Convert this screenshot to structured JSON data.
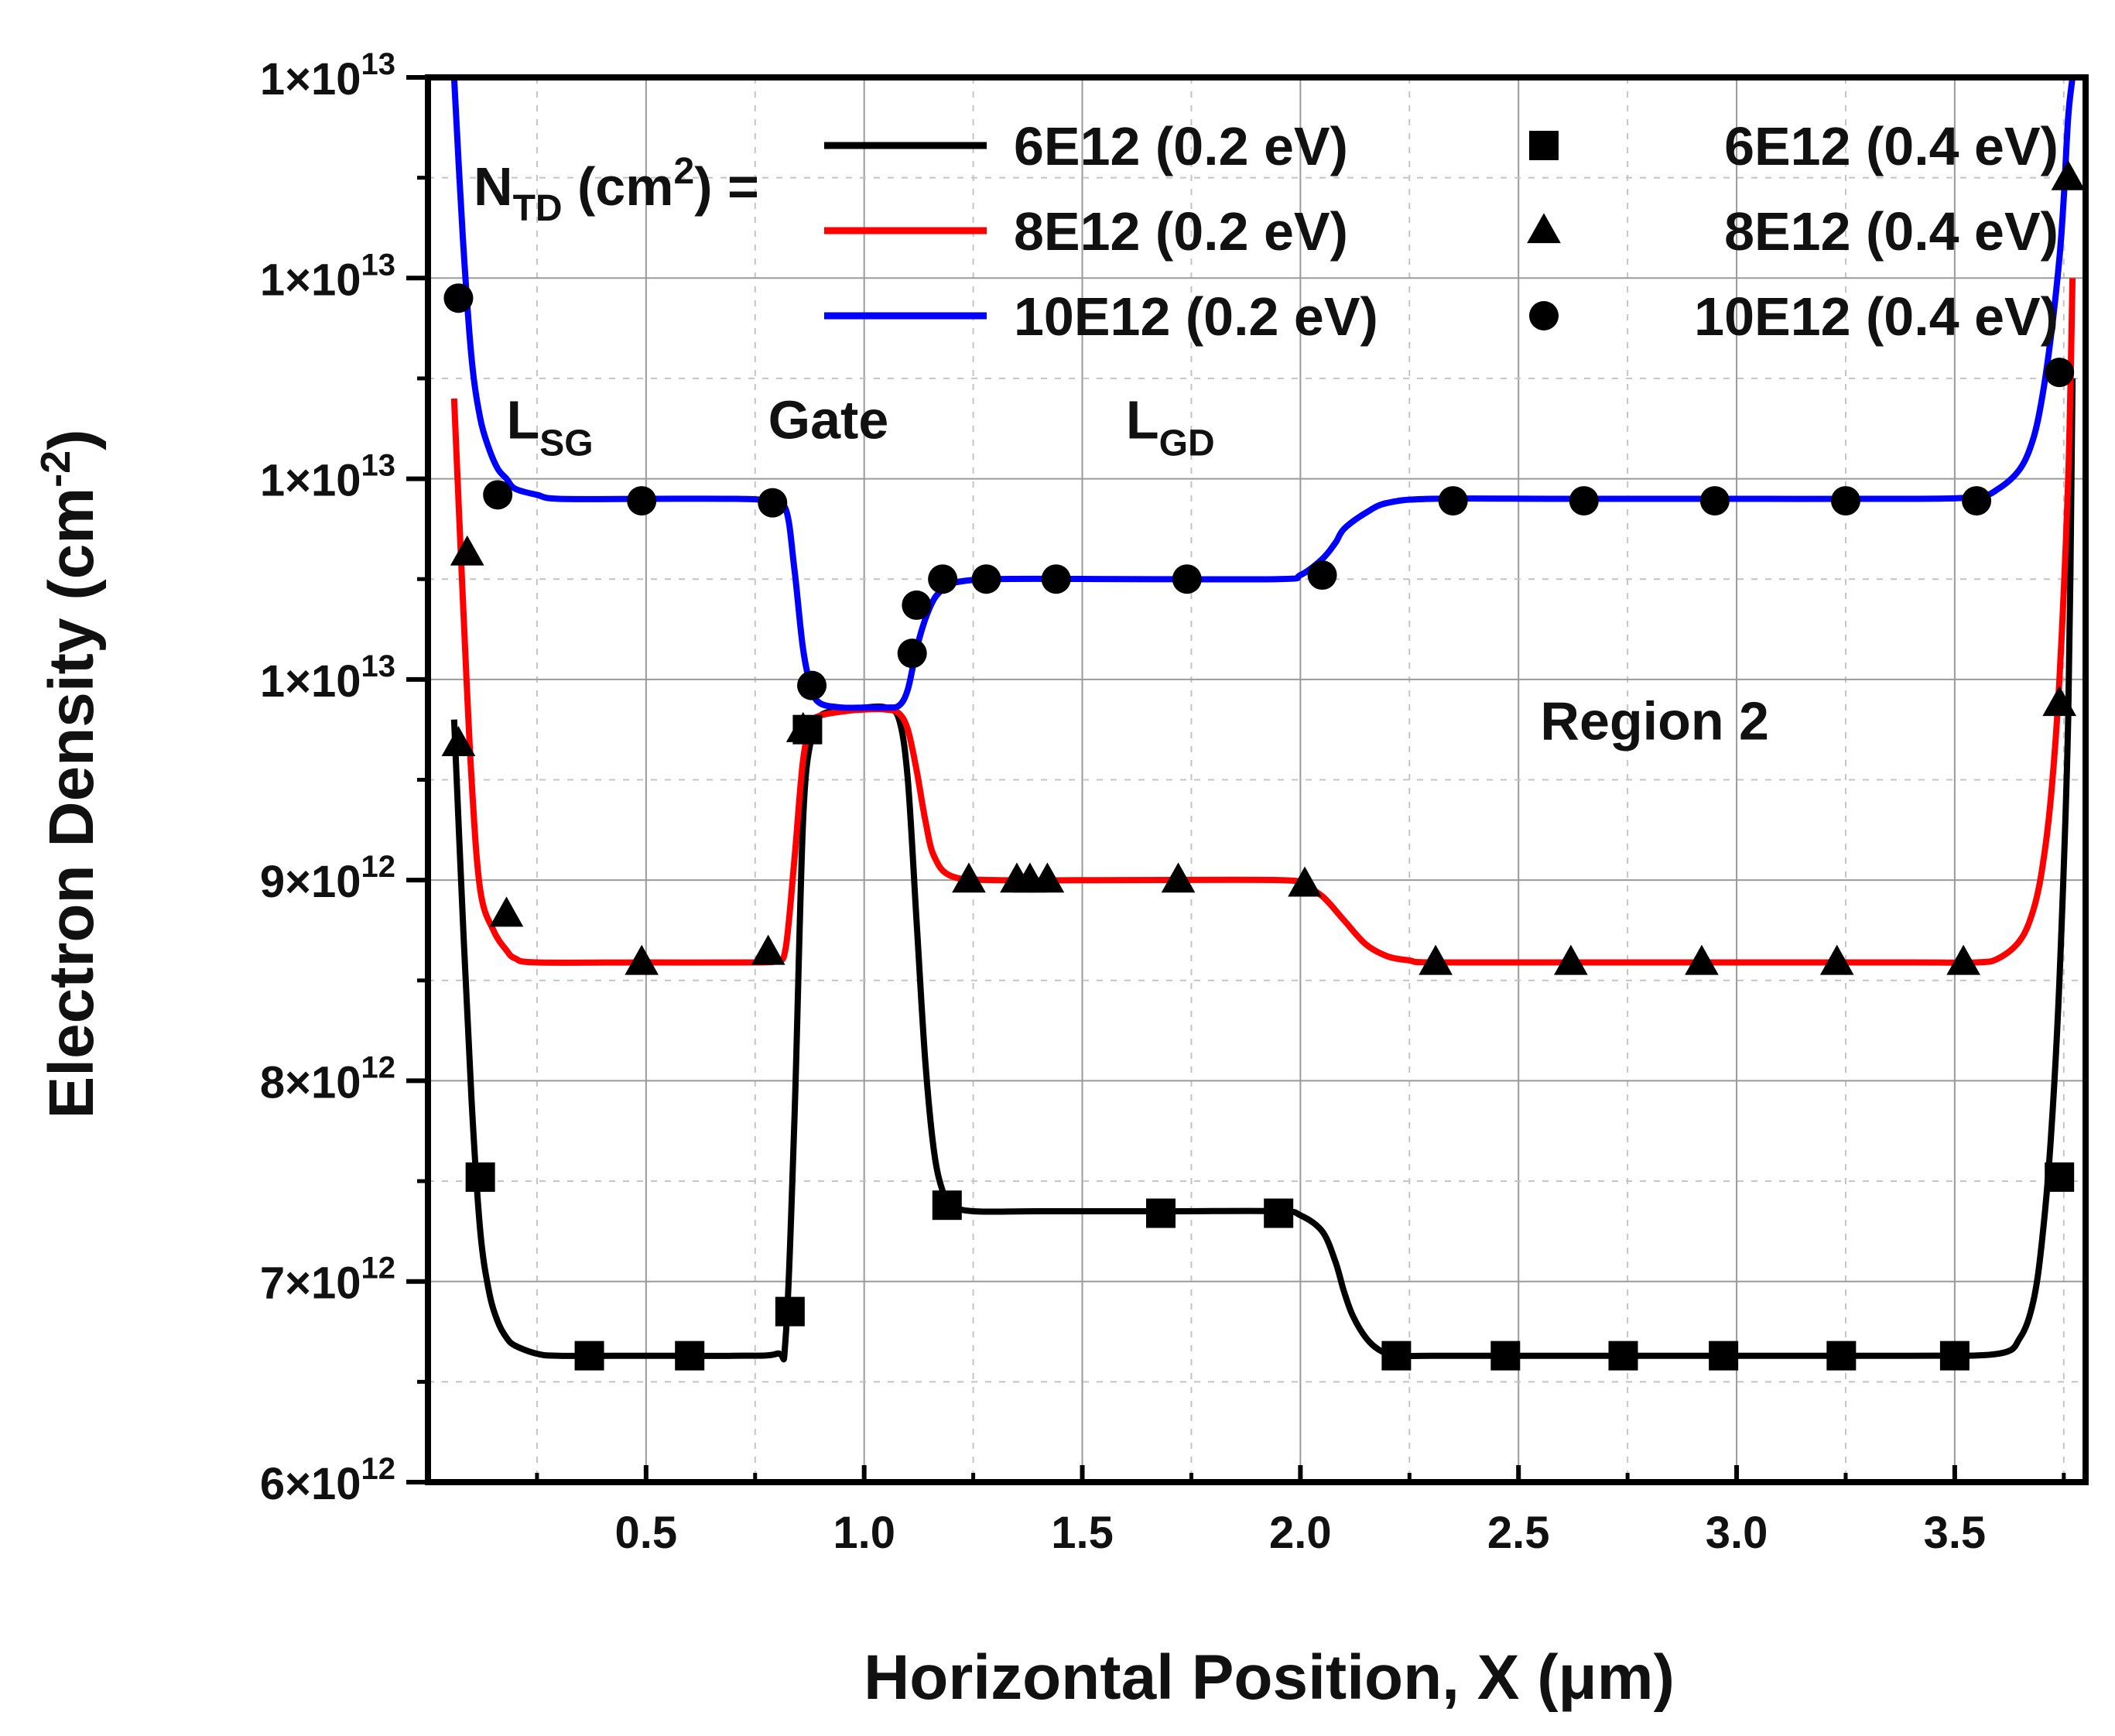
{
  "chart_data": {
    "type": "line",
    "xlabel": "Horizontal Position, X (μm)",
    "ylabel": "Electron Density (cm",
    "ylabel_sup": "-2",
    "ylabel_close": ")",
    "xlim": [
      0.0,
      3.8
    ],
    "ylim": [
      6.0,
      13.0
    ],
    "y_unit_note": "y values in units of 1e12 cm^-2",
    "xticks": [
      {
        "value": 0.5,
        "label": "0.5"
      },
      {
        "value": 1.0,
        "label": "1.0"
      },
      {
        "value": 1.5,
        "label": "1.5"
      },
      {
        "value": 2.0,
        "label": "2.0"
      },
      {
        "value": 2.5,
        "label": "2.5"
      },
      {
        "value": 3.0,
        "label": "3.0"
      },
      {
        "value": 3.5,
        "label": "3.5"
      }
    ],
    "yticks": [
      {
        "value": 6,
        "base": "6×10",
        "exp": "12"
      },
      {
        "value": 7,
        "base": "7×10",
        "exp": "12"
      },
      {
        "value": 8,
        "base": "8×10",
        "exp": "12"
      },
      {
        "value": 9,
        "base": "9×10",
        "exp": "12"
      },
      {
        "value": 10,
        "base": "1×10",
        "exp": "13"
      },
      {
        "value": 11,
        "base": "1×10",
        "exp": "13"
      },
      {
        "value": 12,
        "base": "1×10",
        "exp": "13"
      },
      {
        "value": 13,
        "base": "1×10",
        "exp": "13"
      }
    ],
    "grid": true,
    "legend_title": {
      "main": "N",
      "sub": "TD",
      "mid": " (cm",
      "sup": "2",
      "end": ") ="
    },
    "legend_placement": "top",
    "series": [
      {
        "name": "6E12 (0.2 eV)",
        "kind": "line",
        "color": "#000000",
        "x": [
          0.06,
          0.08,
          0.1,
          0.12,
          0.14,
          0.16,
          0.18,
          0.2,
          0.25,
          0.3,
          0.5,
          0.7,
          0.8,
          0.82,
          0.84,
          0.86,
          0.88,
          0.9,
          0.95,
          1.0,
          1.05,
          1.08,
          1.1,
          1.12,
          1.14,
          1.16,
          1.18,
          1.2,
          1.25,
          1.4,
          1.7,
          1.95,
          2.0,
          2.05,
          2.08,
          2.1,
          2.12,
          2.15,
          2.18,
          2.22,
          2.3,
          2.6,
          3.0,
          3.4,
          3.6,
          3.65,
          3.68,
          3.7,
          3.72,
          3.74,
          3.76,
          3.77
        ],
        "y": [
          9.8,
          8.8,
          7.9,
          7.25,
          6.95,
          6.8,
          6.72,
          6.68,
          6.64,
          6.63,
          6.63,
          6.63,
          6.64,
          6.72,
          7.8,
          9.3,
          9.72,
          9.82,
          9.85,
          9.86,
          9.86,
          9.8,
          9.5,
          8.8,
          8.1,
          7.65,
          7.45,
          7.38,
          7.35,
          7.35,
          7.35,
          7.35,
          7.33,
          7.25,
          7.1,
          6.95,
          6.83,
          6.72,
          6.66,
          6.63,
          6.63,
          6.63,
          6.63,
          6.63,
          6.64,
          6.72,
          6.9,
          7.2,
          7.7,
          8.5,
          9.8,
          11.5
        ]
      },
      {
        "name": "8E12 (0.2 eV)",
        "kind": "line",
        "color": "#ff0000",
        "x": [
          0.06,
          0.08,
          0.1,
          0.12,
          0.15,
          0.18,
          0.2,
          0.25,
          0.5,
          0.75,
          0.8,
          0.82,
          0.84,
          0.86,
          0.88,
          0.9,
          0.95,
          1.0,
          1.05,
          1.08,
          1.1,
          1.12,
          1.14,
          1.16,
          1.2,
          1.3,
          1.6,
          1.95,
          2.0,
          2.05,
          2.1,
          2.15,
          2.2,
          2.25,
          2.3,
          2.6,
          3.0,
          3.4,
          3.55,
          3.6,
          3.65,
          3.68,
          3.7,
          3.72,
          3.74,
          3.76,
          3.77
        ],
        "y": [
          11.4,
          10.4,
          9.5,
          8.95,
          8.75,
          8.65,
          8.61,
          8.59,
          8.59,
          8.59,
          8.6,
          8.66,
          9.1,
          9.6,
          9.78,
          9.82,
          9.84,
          9.85,
          9.85,
          9.83,
          9.75,
          9.55,
          9.3,
          9.12,
          9.02,
          9.0,
          9.0,
          9.0,
          8.98,
          8.92,
          8.8,
          8.68,
          8.62,
          8.6,
          8.59,
          8.59,
          8.59,
          8.59,
          8.59,
          8.61,
          8.7,
          8.85,
          9.05,
          9.4,
          10.0,
          11.0,
          12.0
        ]
      },
      {
        "name": "10E12 (0.2 eV)",
        "kind": "line",
        "color": "#0000ff",
        "x": [
          0.06,
          0.08,
          0.1,
          0.12,
          0.14,
          0.16,
          0.18,
          0.2,
          0.25,
          0.3,
          0.5,
          0.7,
          0.78,
          0.82,
          0.84,
          0.86,
          0.88,
          0.9,
          0.95,
          1.0,
          1.05,
          1.08,
          1.1,
          1.12,
          1.14,
          1.16,
          1.18,
          1.2,
          1.3,
          1.6,
          1.95,
          2.0,
          2.05,
          2.08,
          2.1,
          2.15,
          2.2,
          2.3,
          2.6,
          3.0,
          3.4,
          3.55,
          3.6,
          3.65,
          3.68,
          3.7,
          3.72,
          3.74,
          3.75,
          3.76,
          3.77
        ],
        "y": [
          13.0,
          12.2,
          11.6,
          11.3,
          11.15,
          11.05,
          11.0,
          10.95,
          10.92,
          10.9,
          10.9,
          10.9,
          10.89,
          10.85,
          10.55,
          10.15,
          9.95,
          9.88,
          9.86,
          9.86,
          9.86,
          9.87,
          9.95,
          10.15,
          10.3,
          10.4,
          10.45,
          10.48,
          10.5,
          10.5,
          10.5,
          10.52,
          10.6,
          10.68,
          10.75,
          10.83,
          10.88,
          10.9,
          10.9,
          10.9,
          10.9,
          10.91,
          10.95,
          11.05,
          11.2,
          11.4,
          11.7,
          12.1,
          12.4,
          12.8,
          13.0
        ]
      },
      {
        "name": "6E12 (0.4 eV)",
        "kind": "marker",
        "marker": "square",
        "color": "#000000",
        "x": [
          0.12,
          0.37,
          0.6,
          0.83,
          0.87,
          1.19,
          1.68,
          1.95,
          2.22,
          2.47,
          2.74,
          2.97,
          3.24,
          3.5,
          3.74
        ],
        "y": [
          7.52,
          6.63,
          6.63,
          6.85,
          9.75,
          7.38,
          7.34,
          7.34,
          6.63,
          6.63,
          6.63,
          6.63,
          6.63,
          6.63,
          7.52
        ]
      },
      {
        "name": "8E12 (0.4 eV)",
        "kind": "marker",
        "marker": "triangle",
        "color": "#000000",
        "x": [
          0.07,
          0.09,
          0.18,
          0.49,
          0.78,
          0.86,
          1.24,
          1.35,
          1.38,
          1.42,
          1.72,
          2.01,
          2.31,
          2.62,
          2.92,
          3.23,
          3.52,
          3.74,
          3.76
        ],
        "y": [
          9.68,
          10.63,
          8.83,
          8.59,
          8.64,
          9.75,
          9.0,
          9.0,
          9.0,
          9.0,
          9.0,
          8.98,
          8.59,
          8.59,
          8.59,
          8.59,
          8.59,
          9.88,
          12.5
        ]
      },
      {
        "name": "10E12 (0.4 eV)",
        "kind": "marker",
        "marker": "circle",
        "color": "#000000",
        "x": [
          0.07,
          0.16,
          0.49,
          0.79,
          0.88,
          1.11,
          1.12,
          1.18,
          1.28,
          1.44,
          1.74,
          2.05,
          2.35,
          2.65,
          2.95,
          3.25,
          3.55,
          3.74
        ],
        "y": [
          11.9,
          10.92,
          10.89,
          10.88,
          9.97,
          10.13,
          10.37,
          10.5,
          10.5,
          10.5,
          10.5,
          10.52,
          10.89,
          10.89,
          10.89,
          10.89,
          10.89,
          11.53
        ]
      }
    ],
    "annotations": [
      {
        "main": "L",
        "sub": "SG",
        "x": 0.18,
        "y": 11.2
      },
      {
        "main": "Gate",
        "sub": "",
        "x": 0.78,
        "y": 11.2
      },
      {
        "main": "L",
        "sub": "GD",
        "x": 1.6,
        "y": 11.2
      },
      {
        "main": "Region 2",
        "sub": "",
        "x": 2.55,
        "y": 9.7
      }
    ]
  }
}
